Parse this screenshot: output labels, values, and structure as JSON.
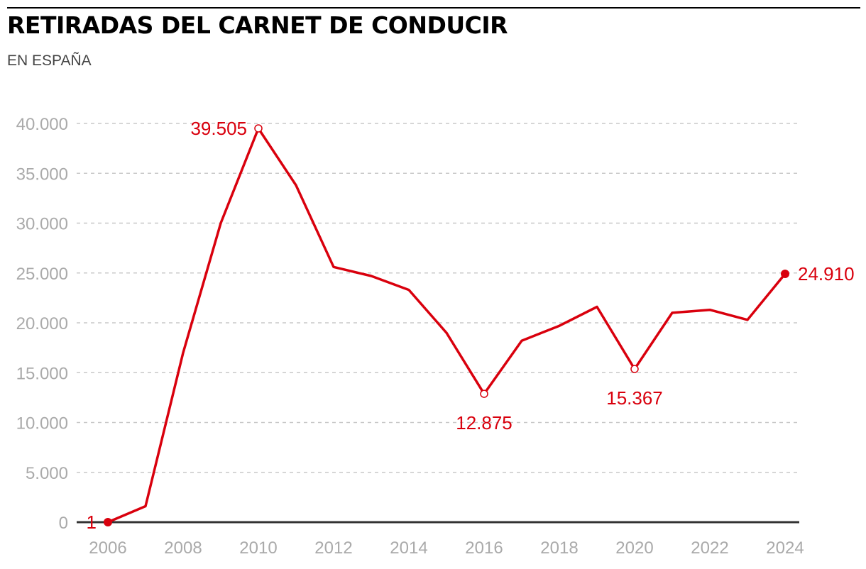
{
  "header": {
    "title": "RETIRADAS DEL CARNET DE CONDUCIR",
    "subtitle": "EN ESPAÑA"
  },
  "colors": {
    "series": "#d9000d",
    "grid": "#c8c8c8",
    "tick_text": "#aaaaaa",
    "baseline": "#333333"
  },
  "chart_data": {
    "type": "line",
    "title": "RETIRADAS DEL CARNET DE CONDUCIR",
    "subtitle": "EN ESPAÑA",
    "xlabel": "",
    "ylabel": "",
    "x": [
      2006,
      2007,
      2008,
      2009,
      2010,
      2011,
      2012,
      2013,
      2014,
      2015,
      2016,
      2017,
      2018,
      2019,
      2020,
      2021,
      2022,
      2023,
      2024
    ],
    "series": [
      {
        "values": [
          1,
          1600,
          17000,
          30000,
          39505,
          33800,
          25600,
          24700,
          23300,
          19000,
          12875,
          18200,
          19700,
          21600,
          15367,
          21000,
          21300,
          20300,
          24910
        ]
      }
    ],
    "xlim": [
      2006,
      2024
    ],
    "ylim": [
      0,
      40000
    ],
    "x_ticks": [
      2006,
      2008,
      2010,
      2012,
      2014,
      2016,
      2018,
      2020,
      2022,
      2024
    ],
    "x_tick_labels": [
      "2006",
      "2008",
      "2010",
      "2012",
      "2014",
      "2016",
      "2018",
      "2020",
      "2022",
      "2024"
    ],
    "y_ticks": [
      0,
      5000,
      10000,
      15000,
      20000,
      25000,
      30000,
      35000,
      40000
    ],
    "y_tick_labels": [
      "0",
      "5.000",
      "10.000",
      "15.000",
      "20.000",
      "25.000",
      "30.000",
      "35.000",
      "40.000"
    ],
    "grid": true,
    "gridline_style": "dashed",
    "annotations": [
      {
        "x": 2006,
        "y": 1,
        "text": "1",
        "position": "left",
        "marker": "filled"
      },
      {
        "x": 2010,
        "y": 39505,
        "text": "39.505",
        "position": "left",
        "marker": "hollow"
      },
      {
        "x": 2016,
        "y": 12875,
        "text": "12.875",
        "position": "below",
        "marker": "hollow"
      },
      {
        "x": 2020,
        "y": 15367,
        "text": "15.367",
        "position": "below",
        "marker": "hollow"
      },
      {
        "x": 2024,
        "y": 24910,
        "text": "24.910",
        "position": "right",
        "marker": "filled"
      }
    ]
  }
}
